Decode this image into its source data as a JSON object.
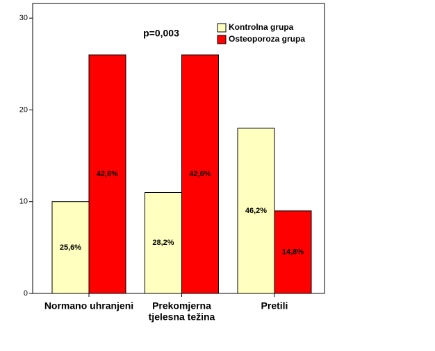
{
  "chart_data": {
    "type": "bar",
    "categories": [
      [
        "Normano uhranjeni"
      ],
      [
        "Prekomjerna",
        "tjelesna težina"
      ],
      [
        "Pretili"
      ]
    ],
    "series": [
      {
        "name": "Kontrolna grupa",
        "color": "#ffffbf",
        "values": [
          10,
          11,
          18
        ],
        "percent_labels": [
          "25,6%",
          "28,2%",
          "46,2%"
        ]
      },
      {
        "name": "Osteoporoza grupa",
        "color": "#ff0000",
        "values": [
          26,
          26,
          9
        ],
        "percent_labels": [
          "42,6%",
          "42,6%",
          "14,8%"
        ]
      }
    ],
    "annotation": "p=0,003",
    "ylim": [
      0,
      31.6
    ],
    "yticks": [
      0,
      10,
      20,
      30
    ],
    "legend": "top-right"
  }
}
